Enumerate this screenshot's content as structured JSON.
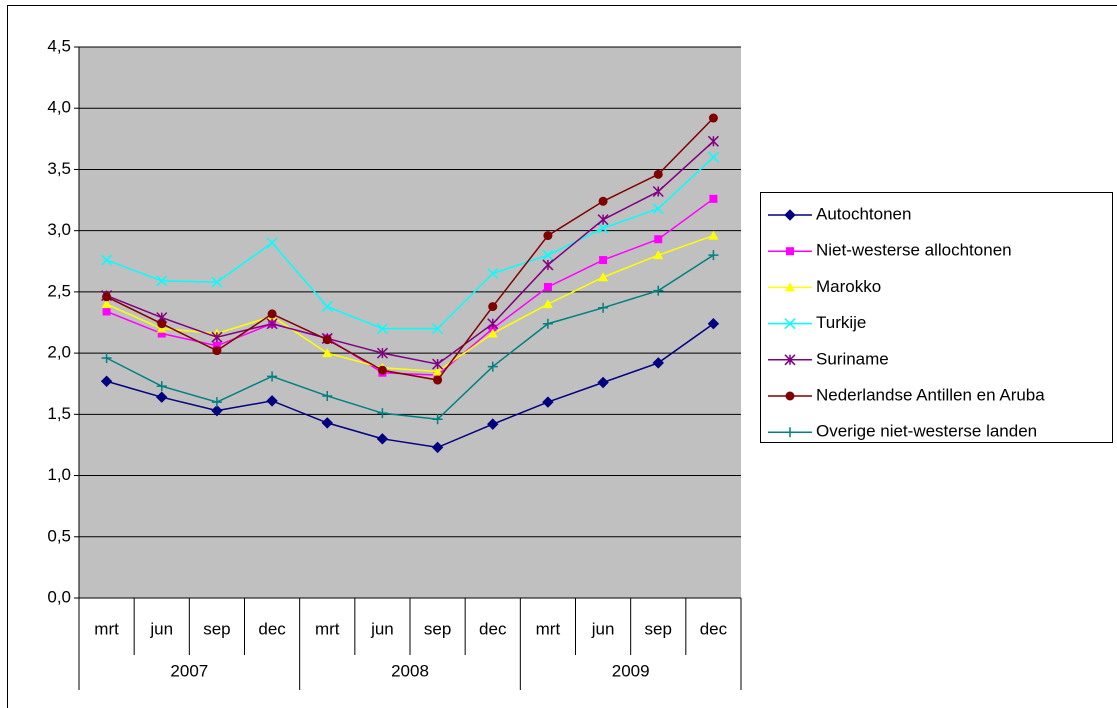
{
  "chart_data": {
    "type": "line",
    "categories": [
      "mrt",
      "jun",
      "sep",
      "dec",
      "mrt",
      "jun",
      "sep",
      "dec",
      "mrt",
      "jun",
      "sep",
      "dec"
    ],
    "groups": [
      "2007",
      "2008",
      "2009"
    ],
    "ylim": [
      0,
      4.5
    ],
    "yticks": [
      {
        "value": 0,
        "label": "0,0"
      },
      {
        "value": 0.5,
        "label": "0,5"
      },
      {
        "value": 1,
        "label": "1,0"
      },
      {
        "value": 1.5,
        "label": "1,5"
      },
      {
        "value": 2,
        "label": "2,0"
      },
      {
        "value": 2.5,
        "label": "2,5"
      },
      {
        "value": 3,
        "label": "3,0"
      },
      {
        "value": 3.5,
        "label": "3,5"
      },
      {
        "value": 4,
        "label": "4,0"
      },
      {
        "value": 4.5,
        "label": "4,5"
      }
    ],
    "grid": true,
    "legend": "right",
    "series": [
      {
        "name": "Autochtonen",
        "color": "#000080",
        "marker": "diamond",
        "values": [
          1.77,
          1.64,
          1.53,
          1.61,
          1.43,
          1.3,
          1.23,
          1.42,
          1.6,
          1.76,
          1.92,
          2.24
        ]
      },
      {
        "name": "Niet-westerse allochtonen",
        "color": "#ff00ff",
        "marker": "square",
        "values": [
          2.34,
          2.16,
          2.06,
          2.24,
          2.12,
          1.84,
          1.82,
          2.2,
          2.54,
          2.76,
          2.93,
          3.26
        ]
      },
      {
        "name": "Marokko",
        "color": "#ffff00",
        "marker": "triangle",
        "values": [
          2.4,
          2.2,
          2.16,
          2.3,
          2.0,
          1.88,
          1.85,
          2.16,
          2.4,
          2.62,
          2.8,
          2.96
        ]
      },
      {
        "name": "Turkije",
        "color": "#00ffff",
        "marker": "x",
        "values": [
          2.76,
          2.59,
          2.58,
          2.9,
          2.38,
          2.2,
          2.2,
          2.65,
          2.8,
          3.02,
          3.18,
          3.6
        ]
      },
      {
        "name": "Suriname",
        "color": "#800080",
        "marker": "asterisk",
        "values": [
          2.47,
          2.29,
          2.13,
          2.24,
          2.12,
          2.0,
          1.91,
          2.24,
          2.72,
          3.09,
          3.32,
          3.73
        ]
      },
      {
        "name": "Nederlandse Antillen en Aruba",
        "color": "#800000",
        "marker": "circle",
        "values": [
          2.46,
          2.24,
          2.02,
          2.32,
          2.11,
          1.86,
          1.78,
          2.38,
          2.96,
          3.24,
          3.46,
          3.92
        ]
      },
      {
        "name": "Overige niet-westerse landen",
        "color": "#008080",
        "marker": "plus",
        "values": [
          1.96,
          1.73,
          1.6,
          1.81,
          1.65,
          1.51,
          1.46,
          1.89,
          2.24,
          2.37,
          2.51,
          2.8
        ]
      }
    ]
  }
}
